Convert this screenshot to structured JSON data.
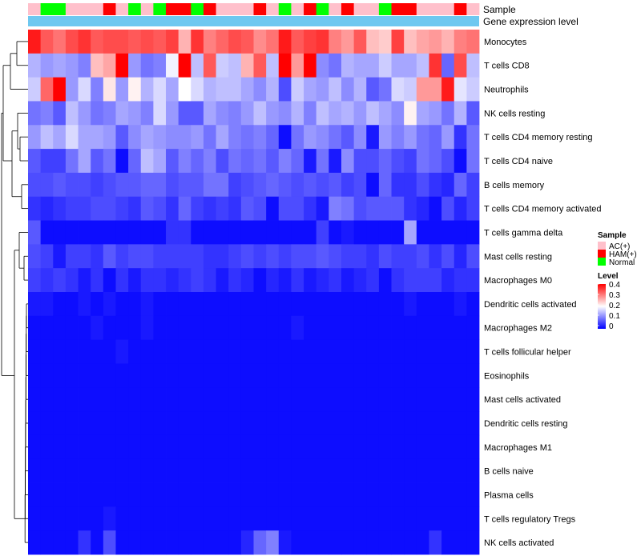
{
  "chart_data": {
    "type": "heatmap",
    "track_labels": {
      "sample": "Sample",
      "expression": "Gene expression level"
    },
    "sample_colors": {
      "AC(+)": "#FFC0CB",
      "HAM(+)": "#FF0000",
      "Normal": "#00FF00"
    },
    "expression_bar_color": "#6EC8F0",
    "samples": [
      "A",
      "N",
      "N",
      "A",
      "A",
      "A",
      "H",
      "A",
      "N",
      "A",
      "N",
      "H",
      "H",
      "N",
      "H",
      "A",
      "A",
      "A",
      "H",
      "A",
      "N",
      "A",
      "H",
      "N",
      "A",
      "H",
      "A",
      "A",
      "N",
      "H",
      "H",
      "A",
      "A",
      "A",
      "H",
      "A"
    ],
    "rows": [
      "Monocytes",
      "T cells CD8",
      "Neutrophils",
      "NK cells resting",
      "T cells CD4 memory resting",
      "T cells CD4 naive",
      "B cells memory",
      "T cells CD4 memory activated",
      "T cells gamma delta",
      "Mast cells resting",
      "Macrophages M0",
      "Dendritic cells activated",
      "Macrophages M2",
      "T cells follicular helper",
      "Eosinophils",
      "Mast cells activated",
      "Dendritic cells resting",
      "Macrophages M1",
      "B cells naive",
      "Plasma cells",
      "T cells regulatory  Tregs",
      "NK cells activated"
    ],
    "values": [
      [
        0.38,
        0.33,
        0.31,
        0.34,
        0.36,
        0.33,
        0.34,
        0.34,
        0.33,
        0.34,
        0.33,
        0.35,
        0.26,
        0.36,
        0.3,
        0.32,
        0.34,
        0.33,
        0.29,
        0.31,
        0.38,
        0.33,
        0.35,
        0.36,
        0.3,
        0.28,
        0.33,
        0.25,
        0.24,
        0.35,
        0.25,
        0.27,
        0.28,
        0.26,
        0.3,
        0.31
      ],
      [
        0.14,
        0.12,
        0.13,
        0.12,
        0.1,
        0.25,
        0.27,
        0.4,
        0.12,
        0.09,
        0.1,
        0.19,
        0.4,
        0.15,
        0.33,
        0.16,
        0.15,
        0.26,
        0.33,
        0.15,
        0.4,
        0.28,
        0.4,
        0.11,
        0.09,
        0.14,
        0.13,
        0.13,
        0.16,
        0.13,
        0.13,
        0.15,
        0.36,
        0.08,
        0.34,
        0.15
      ],
      [
        0.16,
        0.32,
        0.4,
        0.12,
        0.17,
        0.1,
        0.22,
        0.12,
        0.21,
        0.14,
        0.17,
        0.13,
        0.2,
        0.17,
        0.14,
        0.15,
        0.15,
        0.13,
        0.11,
        0.14,
        0.06,
        0.16,
        0.13,
        0.12,
        0.15,
        0.11,
        0.14,
        0.07,
        0.09,
        0.17,
        0.16,
        0.28,
        0.28,
        0.38,
        0.18,
        0.16
      ],
      [
        0.09,
        0.1,
        0.07,
        0.15,
        0.12,
        0.09,
        0.1,
        0.13,
        0.12,
        0.1,
        0.17,
        0.12,
        0.07,
        0.07,
        0.13,
        0.11,
        0.1,
        0.12,
        0.15,
        0.12,
        0.11,
        0.14,
        0.1,
        0.15,
        0.13,
        0.14,
        0.12,
        0.15,
        0.13,
        0.11,
        0.21,
        0.13,
        0.12,
        0.09,
        0.14,
        0.07
      ],
      [
        0.12,
        0.15,
        0.13,
        0.17,
        0.13,
        0.13,
        0.12,
        0.07,
        0.11,
        0.13,
        0.12,
        0.11,
        0.11,
        0.12,
        0.09,
        0.13,
        0.1,
        0.09,
        0.1,
        0.08,
        0.01,
        0.09,
        0.12,
        0.11,
        0.09,
        0.07,
        0.11,
        0.02,
        0.12,
        0.1,
        0.12,
        0.09,
        0.08,
        0.12,
        0.04,
        0.09
      ],
      [
        0.07,
        0.05,
        0.05,
        0.09,
        0.13,
        0.07,
        0.09,
        0.01,
        0.08,
        0.15,
        0.13,
        0.07,
        0.1,
        0.08,
        0.1,
        0.06,
        0.09,
        0.08,
        0.09,
        0.07,
        0.1,
        0.08,
        0.02,
        0.09,
        0.02,
        0.11,
        0.06,
        0.06,
        0.08,
        0.06,
        0.05,
        0.09,
        0.08,
        0.06,
        0.01,
        0.09
      ],
      [
        0.06,
        0.06,
        0.07,
        0.06,
        0.06,
        0.05,
        0.06,
        0.07,
        0.07,
        0.08,
        0.08,
        0.06,
        0.07,
        0.07,
        0.09,
        0.09,
        0.05,
        0.06,
        0.07,
        0.08,
        0.07,
        0.06,
        0.07,
        0.06,
        0.07,
        0.05,
        0.06,
        0.01,
        0.08,
        0.04,
        0.04,
        0.06,
        0.04,
        0.03,
        0.08,
        0.05
      ],
      [
        0.04,
        0.03,
        0.04,
        0.05,
        0.05,
        0.06,
        0.06,
        0.05,
        0.04,
        0.07,
        0.06,
        0.04,
        0.08,
        0.05,
        0.04,
        0.05,
        0.04,
        0.07,
        0.06,
        0.01,
        0.06,
        0.06,
        0.04,
        0.02,
        0.1,
        0.09,
        0.06,
        0.07,
        0.07,
        0.07,
        0.04,
        0.03,
        0.01,
        0.06,
        0.03,
        0.05
      ],
      [
        0.07,
        0.01,
        0.01,
        0.01,
        0.01,
        0.01,
        0.01,
        0.01,
        0.01,
        0.01,
        0.01,
        0.04,
        0.04,
        0.01,
        0.01,
        0.01,
        0.01,
        0.01,
        0.01,
        0.01,
        0.01,
        0.01,
        0.01,
        0.05,
        0.01,
        0.02,
        0.01,
        0.01,
        0.01,
        0.01,
        0.13,
        0.01,
        0.01,
        0.01,
        0.01,
        0.01
      ],
      [
        0.06,
        0.05,
        0.02,
        0.05,
        0.05,
        0.04,
        0.07,
        0.05,
        0.06,
        0.06,
        0.05,
        0.05,
        0.05,
        0.05,
        0.04,
        0.04,
        0.05,
        0.06,
        0.05,
        0.06,
        0.05,
        0.06,
        0.06,
        0.07,
        0.06,
        0.05,
        0.05,
        0.04,
        0.06,
        0.05,
        0.05,
        0.06,
        0.04,
        0.06,
        0.03,
        0.06
      ],
      [
        0.05,
        0.04,
        0.05,
        0.04,
        0.02,
        0.04,
        0.01,
        0.04,
        0.02,
        0.04,
        0.04,
        0.03,
        0.04,
        0.05,
        0.04,
        0.02,
        0.04,
        0.03,
        0.01,
        0.03,
        0.02,
        0.04,
        0.02,
        0.03,
        0.04,
        0.02,
        0.03,
        0.04,
        0.01,
        0.04,
        0.05,
        0.05,
        0.05,
        0.03,
        0.04,
        0.04
      ],
      [
        0.02,
        0.02,
        0.01,
        0.01,
        0.02,
        0.01,
        0.02,
        0.01,
        0.01,
        0.02,
        0.01,
        0.01,
        0.01,
        0.01,
        0.01,
        0.01,
        0.01,
        0.01,
        0.01,
        0.01,
        0.01,
        0.01,
        0.01,
        0.01,
        0.01,
        0.01,
        0.01,
        0.01,
        0.01,
        0.01,
        0.02,
        0.01,
        0.01,
        0.01,
        0.02,
        0.01
      ],
      [
        0.01,
        0.01,
        0.01,
        0.01,
        0.01,
        0.02,
        0.01,
        0.01,
        0.01,
        0.02,
        0.01,
        0.01,
        0.01,
        0.01,
        0.01,
        0.01,
        0.01,
        0.01,
        0.01,
        0.01,
        0.01,
        0.02,
        0.01,
        0.01,
        0.01,
        0.01,
        0.01,
        0.01,
        0.01,
        0.01,
        0.01,
        0.01,
        0.01,
        0.01,
        0.01,
        0.01
      ],
      [
        0.01,
        0.01,
        0.01,
        0.01,
        0.01,
        0.01,
        0.01,
        0.02,
        0.01,
        0.01,
        0.01,
        0.01,
        0.01,
        0.01,
        0.01,
        0.01,
        0.01,
        0.01,
        0.01,
        0.01,
        0.01,
        0.01,
        0.01,
        0.01,
        0.01,
        0.01,
        0.01,
        0.01,
        0.01,
        0.01,
        0.01,
        0.01,
        0.01,
        0.01,
        0.01,
        0.01
      ],
      [
        0.01,
        0.01,
        0.01,
        0.01,
        0.01,
        0.01,
        0.01,
        0.01,
        0.01,
        0.01,
        0.01,
        0.01,
        0.01,
        0.01,
        0.01,
        0.01,
        0.01,
        0.01,
        0.01,
        0.01,
        0.01,
        0.01,
        0.01,
        0.01,
        0.01,
        0.01,
        0.01,
        0.01,
        0.01,
        0.01,
        0.01,
        0.01,
        0.01,
        0.01,
        0.01,
        0.01
      ],
      [
        0.01,
        0.01,
        0.01,
        0.01,
        0.01,
        0.01,
        0.01,
        0.01,
        0.01,
        0.01,
        0.01,
        0.01,
        0.01,
        0.01,
        0.01,
        0.01,
        0.01,
        0.01,
        0.01,
        0.01,
        0.01,
        0.01,
        0.01,
        0.01,
        0.01,
        0.01,
        0.01,
        0.01,
        0.01,
        0.01,
        0.01,
        0.01,
        0.01,
        0.01,
        0.01,
        0.01
      ],
      [
        0.01,
        0.01,
        0.01,
        0.01,
        0.01,
        0.01,
        0.01,
        0.01,
        0.01,
        0.01,
        0.01,
        0.01,
        0.01,
        0.01,
        0.01,
        0.01,
        0.01,
        0.01,
        0.01,
        0.01,
        0.01,
        0.01,
        0.01,
        0.01,
        0.01,
        0.01,
        0.01,
        0.01,
        0.01,
        0.01,
        0.01,
        0.01,
        0.01,
        0.01,
        0.01,
        0.01
      ],
      [
        0.01,
        0.01,
        0.01,
        0.01,
        0.01,
        0.01,
        0.01,
        0.01,
        0.01,
        0.01,
        0.01,
        0.01,
        0.01,
        0.01,
        0.01,
        0.01,
        0.01,
        0.01,
        0.01,
        0.01,
        0.01,
        0.01,
        0.01,
        0.01,
        0.01,
        0.01,
        0.01,
        0.01,
        0.01,
        0.01,
        0.01,
        0.01,
        0.01,
        0.01,
        0.01,
        0.01
      ],
      [
        0.01,
        0.01,
        0.01,
        0.01,
        0.01,
        0.01,
        0.01,
        0.01,
        0.01,
        0.01,
        0.01,
        0.01,
        0.01,
        0.01,
        0.01,
        0.01,
        0.01,
        0.01,
        0.01,
        0.01,
        0.01,
        0.01,
        0.01,
        0.01,
        0.01,
        0.01,
        0.01,
        0.01,
        0.01,
        0.01,
        0.01,
        0.01,
        0.01,
        0.01,
        0.01,
        0.01
      ],
      [
        0.01,
        0.01,
        0.01,
        0.01,
        0.01,
        0.01,
        0.01,
        0.01,
        0.01,
        0.01,
        0.01,
        0.01,
        0.01,
        0.01,
        0.01,
        0.01,
        0.01,
        0.01,
        0.01,
        0.01,
        0.01,
        0.01,
        0.01,
        0.01,
        0.01,
        0.01,
        0.01,
        0.01,
        0.01,
        0.01,
        0.01,
        0.01,
        0.01,
        0.01,
        0.01,
        0.01
      ],
      [
        0.01,
        0.01,
        0.01,
        0.01,
        0.01,
        0.01,
        0.02,
        0.01,
        0.01,
        0.01,
        0.01,
        0.01,
        0.01,
        0.01,
        0.01,
        0.01,
        0.01,
        0.01,
        0.01,
        0.01,
        0.01,
        0.01,
        0.01,
        0.01,
        0.01,
        0.01,
        0.01,
        0.01,
        0.01,
        0.01,
        0.01,
        0.01,
        0.01,
        0.01,
        0.01,
        0.01
      ],
      [
        0.01,
        0.01,
        0.01,
        0.01,
        0.04,
        0.01,
        0.06,
        0.01,
        0.01,
        0.01,
        0.01,
        0.01,
        0.01,
        0.01,
        0.01,
        0.01,
        0.01,
        0.03,
        0.08,
        0.1,
        0.02,
        0.01,
        0.01,
        0.01,
        0.01,
        0.01,
        0.01,
        0.01,
        0.01,
        0.01,
        0.01,
        0.01,
        0.04,
        0.01,
        0.01,
        0.01
      ]
    ],
    "color_scale": {
      "min": 0,
      "mid": 0.2,
      "max": 0.4,
      "low": "#0000FF",
      "mid_color": "#FFFFFF",
      "high": "#FF0000"
    },
    "legend": {
      "position": "right",
      "sample_title": "Sample",
      "level_title": "Level",
      "sample_items": [
        "AC(+)",
        "HAM(+)",
        "Normal"
      ],
      "level_ticks": [
        "0.4",
        "0.3",
        "0.2",
        "0.1",
        "0"
      ]
    },
    "dendrogram": {
      "side": "left",
      "rows": true
    }
  }
}
